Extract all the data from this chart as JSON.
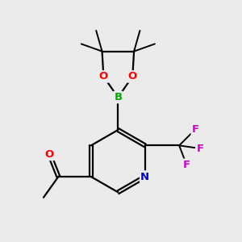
{
  "background_color": "#ebebeb",
  "bond_color": "#000000",
  "atom_colors": {
    "O": "#ff0000",
    "N": "#0000cc",
    "B": "#00aa00",
    "F": "#cc00cc",
    "C": "#000000"
  },
  "figsize": [
    3.0,
    3.0
  ],
  "dpi": 100
}
